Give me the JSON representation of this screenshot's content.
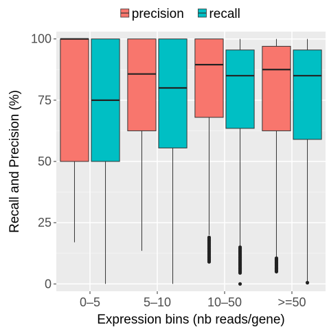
{
  "chart_data": {
    "type": "boxplot",
    "xlabel": "Expression bins (nb reads/gene)",
    "ylabel": "Recall and Precision (%)",
    "categories": [
      "0–5",
      "5–10",
      "10–50",
      ">=50"
    ],
    "ylim": [
      -3,
      103
    ],
    "yticks": [
      0,
      25,
      50,
      75,
      100
    ],
    "grid": true,
    "legend_position": "top",
    "series": [
      {
        "name": "precision",
        "color": "#F8766D",
        "boxes": [
          {
            "whisker_low": 17,
            "q1": 50,
            "median": 100,
            "q3": 100,
            "whisker_high": 100,
            "outliers": []
          },
          {
            "whisker_low": 13.5,
            "q1": 62.5,
            "median": 85.7,
            "q3": 100,
            "whisker_high": 100,
            "outliers": []
          },
          {
            "whisker_low": 20,
            "q1": 68,
            "median": 89.5,
            "q3": 100,
            "whisker_high": 100,
            "outliers": [
              19,
              18.5,
              18,
              17.5,
              17,
              16.5,
              16,
              15.5,
              15,
              14.5,
              14,
              13.5,
              13,
              12.5,
              12,
              11.5,
              11,
              10.5,
              10,
              9.5,
              9
            ]
          },
          {
            "whisker_low": 11,
            "q1": 62.5,
            "median": 87.5,
            "q3": 97,
            "whisker_high": 100,
            "outliers": [
              10.5,
              10,
              9.5,
              9,
              8.5,
              8,
              7.5,
              7,
              6.5,
              6,
              5.5,
              5
            ]
          }
        ]
      },
      {
        "name": "recall",
        "color": "#00BFC4",
        "boxes": [
          {
            "whisker_low": 0,
            "q1": 50,
            "median": 75,
            "q3": 100,
            "whisker_high": 100,
            "outliers": []
          },
          {
            "whisker_low": 0,
            "q1": 55.5,
            "median": 80,
            "q3": 100,
            "whisker_high": 100,
            "outliers": []
          },
          {
            "whisker_low": 15.5,
            "q1": 63.5,
            "median": 85,
            "q3": 95.5,
            "whisker_high": 100,
            "outliers": [
              15,
              14.5,
              14,
              13.5,
              13,
              12.5,
              12,
              11.5,
              11,
              10.5,
              10,
              9.5,
              9,
              8.5,
              8,
              7.5,
              7,
              6.5,
              6,
              5.5,
              5,
              4.5,
              0
            ]
          },
          {
            "whisker_low": 1,
            "q1": 59,
            "median": 85,
            "q3": 95.5,
            "whisker_high": 100,
            "outliers": [
              0.5
            ]
          }
        ]
      }
    ]
  }
}
